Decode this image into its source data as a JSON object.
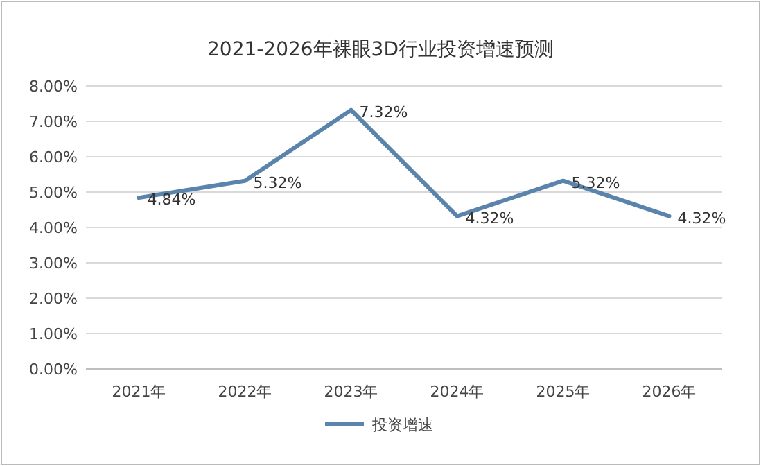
{
  "chart_data": {
    "type": "line",
    "title": "2021-2026年裸眼3D行业投资增速预测",
    "categories": [
      "2021年",
      "2022年",
      "2023年",
      "2024年",
      "2025年",
      "2026年"
    ],
    "series": [
      {
        "name": "投资增速",
        "color": "#5b84ad",
        "values": [
          4.84,
          5.32,
          7.32,
          4.32,
          5.32,
          4.32
        ],
        "value_labels": [
          "4.84%",
          "5.32%",
          "7.32%",
          "4.32%",
          "5.32%",
          "4.32%"
        ]
      }
    ],
    "ylim": [
      0,
      8
    ],
    "yticks": [
      {
        "value": 0,
        "label": "0.00%"
      },
      {
        "value": 1,
        "label": "1.00%"
      },
      {
        "value": 2,
        "label": "2.00%"
      },
      {
        "value": 3,
        "label": "3.00%"
      },
      {
        "value": 4,
        "label": "4.00%"
      },
      {
        "value": 5,
        "label": "5.00%"
      },
      {
        "value": 6,
        "label": "6.00%"
      },
      {
        "value": 7,
        "label": "7.00%"
      },
      {
        "value": 8,
        "label": "8.00%"
      }
    ],
    "grid": "y",
    "legend": "bottom",
    "marker": "none",
    "line_style": "solid"
  }
}
